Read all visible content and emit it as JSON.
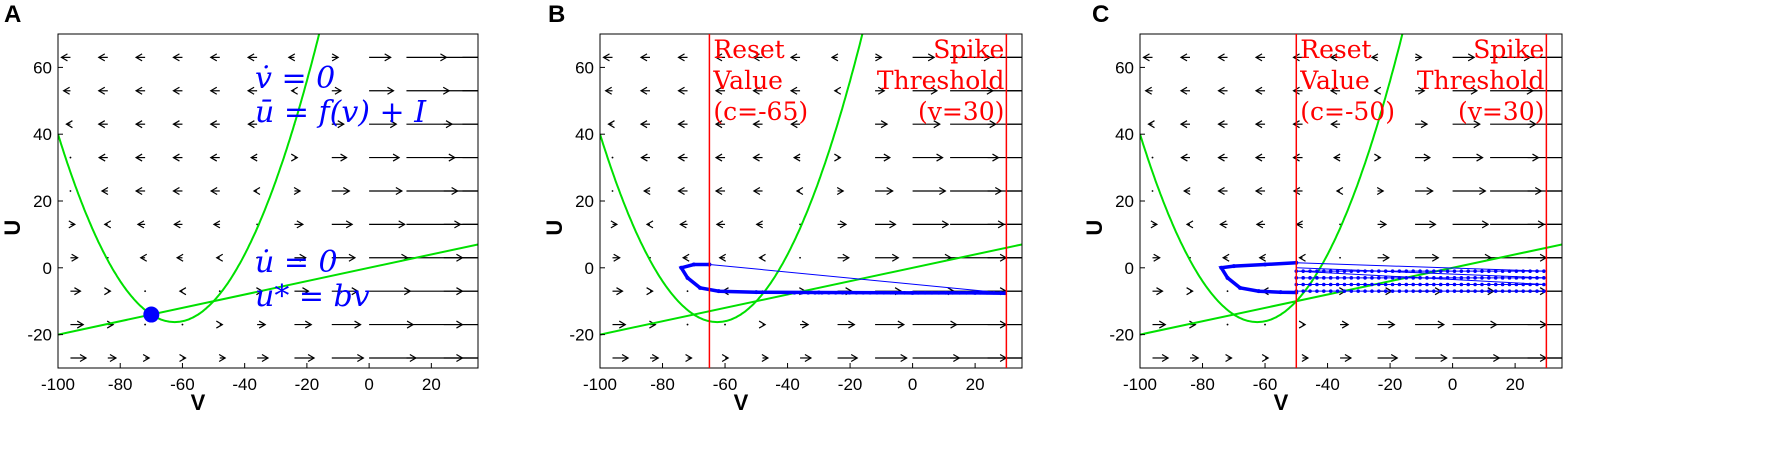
{
  "chart_data": [
    {
      "type": "line",
      "panel": "A",
      "xlabel": "V",
      "ylabel": "U",
      "xlim": [
        -100,
        35
      ],
      "ylim": [
        -30,
        70
      ],
      "xticks": [
        -100,
        -80,
        -60,
        -40,
        -20,
        0,
        20
      ],
      "yticks": [
        -20,
        0,
        20,
        40,
        60
      ],
      "colors": {
        "nullcline": "#00e000",
        "trajectory": "#0000ff",
        "vector": "#000000",
        "threshold": "#ff0000"
      },
      "v_nullcline": {
        "coefficients": {
          "a": 0.04,
          "b": 5,
          "c": 140,
          "I": 0
        }
      },
      "u_nullcline": {
        "slope": 0.2
      },
      "fixed_point": {
        "v": -70,
        "u": -14
      },
      "annotations": [
        {
          "lines": [
            "v̇ = 0",
            "ū = f(v) + I"
          ]
        },
        {
          "lines": [
            "u̇ = 0",
            "u* = bv"
          ]
        }
      ],
      "vertical_lines": []
    },
    {
      "type": "line",
      "panel": "B",
      "xlabel": "V",
      "ylabel": "U",
      "xlim": [
        -100,
        35
      ],
      "ylim": [
        -30,
        70
      ],
      "xticks": [
        -100,
        -80,
        -60,
        -40,
        -20,
        0,
        20
      ],
      "yticks": [
        -20,
        0,
        20,
        40,
        60
      ],
      "colors": {
        "nullcline": "#00e000",
        "trajectory": "#0000ff",
        "vector": "#000000",
        "threshold": "#ff0000"
      },
      "v_nullcline": {
        "coefficients": {
          "a": 0.04,
          "b": 5,
          "c": 140,
          "I": 0
        }
      },
      "u_nullcline": {
        "slope": 0.2
      },
      "vertical_lines": [
        {
          "x": -65,
          "lines": [
            "Reset",
            "Value",
            "(c=-65)"
          ],
          "align": "left"
        },
        {
          "x": 30,
          "lines": [
            "Spike",
            "Threshold",
            "(v=30)"
          ],
          "align": "right"
        }
      ],
      "trajectory": {
        "loop": [
          [
            -65,
            1
          ],
          [
            -70,
            1
          ],
          [
            -74,
            0
          ],
          [
            -72,
            -3
          ],
          [
            -68,
            -6
          ],
          [
            -62,
            -7
          ],
          [
            -50,
            -7.3
          ],
          [
            -30,
            -7.4
          ],
          [
            0,
            -7.5
          ],
          [
            20,
            -7.5
          ],
          [
            29.5,
            -7.6
          ]
        ],
        "jumps": [
          [
            [
              29.5,
              -7.6
            ],
            [
              -65,
              1
            ]
          ]
        ],
        "rows": []
      },
      "annotations": []
    },
    {
      "type": "line",
      "panel": "C",
      "xlabel": "V",
      "ylabel": "U",
      "xlim": [
        -100,
        35
      ],
      "ylim": [
        -30,
        70
      ],
      "xticks": [
        -100,
        -80,
        -60,
        -40,
        -20,
        0,
        20
      ],
      "yticks": [
        -20,
        0,
        20,
        40,
        60
      ],
      "colors": {
        "nullcline": "#00e000",
        "trajectory": "#0000ff",
        "vector": "#000000",
        "threshold": "#ff0000"
      },
      "v_nullcline": {
        "coefficients": {
          "a": 0.04,
          "b": 5,
          "c": 140,
          "I": 0
        }
      },
      "u_nullcline": {
        "slope": 0.2
      },
      "vertical_lines": [
        {
          "x": -50,
          "lines": [
            "Reset",
            "Value",
            "(c=-50)"
          ],
          "align": "left"
        },
        {
          "x": 30,
          "lines": [
            "Spike",
            "Threshold",
            "(v=30)"
          ],
          "align": "right"
        }
      ],
      "trajectory": {
        "loop": [
          [
            -50,
            1.5
          ],
          [
            -60,
            1
          ],
          [
            -70,
            0.5
          ],
          [
            -74,
            0
          ],
          [
            -72,
            -3
          ],
          [
            -68,
            -6
          ],
          [
            -62,
            -7
          ],
          [
            -55,
            -7.3
          ],
          [
            -50,
            -7.4
          ]
        ],
        "jumps": [
          [
            [
              29.5,
              -1
            ],
            [
              -50,
              1.5
            ]
          ],
          [
            [
              29.5,
              -3
            ],
            [
              -50,
              0
            ]
          ],
          [
            [
              29.5,
              -5
            ],
            [
              -50,
              -1
            ]
          ]
        ],
        "rows": [
          -1,
          -3,
          -5,
          -7
        ]
      },
      "annotations": []
    }
  ]
}
